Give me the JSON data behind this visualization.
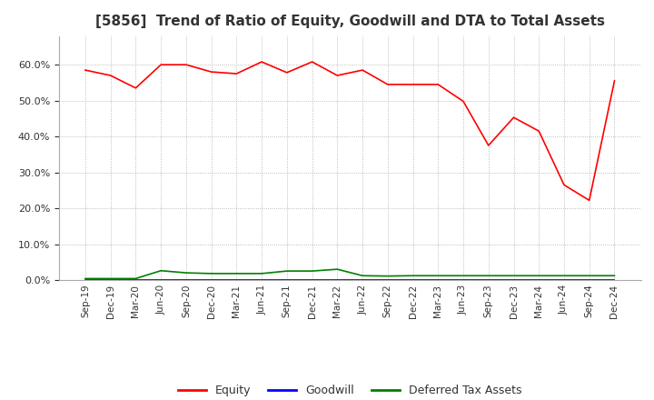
{
  "title": "[5856]  Trend of Ratio of Equity, Goodwill and DTA to Total Assets",
  "x_labels": [
    "Sep-19",
    "Dec-19",
    "Mar-20",
    "Jun-20",
    "Sep-20",
    "Dec-20",
    "Mar-21",
    "Jun-21",
    "Sep-21",
    "Dec-21",
    "Mar-22",
    "Jun-22",
    "Sep-22",
    "Dec-22",
    "Mar-23",
    "Jun-23",
    "Sep-23",
    "Dec-23",
    "Mar-24",
    "Jun-24",
    "Sep-24",
    "Dec-24"
  ],
  "equity": [
    0.585,
    0.57,
    0.535,
    0.6,
    0.6,
    0.58,
    0.575,
    0.608,
    0.578,
    0.608,
    0.57,
    0.585,
    0.545,
    0.545,
    0.545,
    0.498,
    0.375,
    0.453,
    0.415,
    0.265,
    0.222,
    0.555
  ],
  "goodwill": [
    0.001,
    0.001,
    0.001,
    0.001,
    0.001,
    0.001,
    0.001,
    0.001,
    0.001,
    0.001,
    0.001,
    0.001,
    0.001,
    0.001,
    0.001,
    0.001,
    0.001,
    0.001,
    0.001,
    0.001,
    0.001,
    0.001
  ],
  "dta": [
    0.004,
    0.004,
    0.004,
    0.026,
    0.02,
    0.018,
    0.018,
    0.018,
    0.025,
    0.025,
    0.03,
    0.012,
    0.011,
    0.012,
    0.012,
    0.012,
    0.012,
    0.012,
    0.012,
    0.012,
    0.012,
    0.012
  ],
  "equity_color": "#FF0000",
  "goodwill_color": "#0000FF",
  "dta_color": "#008000",
  "background_color": "#FFFFFF",
  "grid_color": "#AAAAAA",
  "ylim": [
    0.0,
    0.68
  ],
  "yticks": [
    0.0,
    0.1,
    0.2,
    0.3,
    0.4,
    0.5,
    0.6
  ],
  "title_fontsize": 11,
  "legend_labels": [
    "Equity",
    "Goodwill",
    "Deferred Tax Assets"
  ]
}
